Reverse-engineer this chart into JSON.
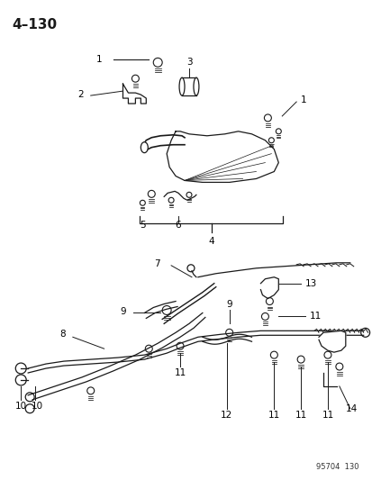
{
  "title": "4–130",
  "bg_color": "#ffffff",
  "lc": "#1a1a1a",
  "fig_width": 4.14,
  "fig_height": 5.33,
  "dpi": 100,
  "watermark": "95704  130"
}
